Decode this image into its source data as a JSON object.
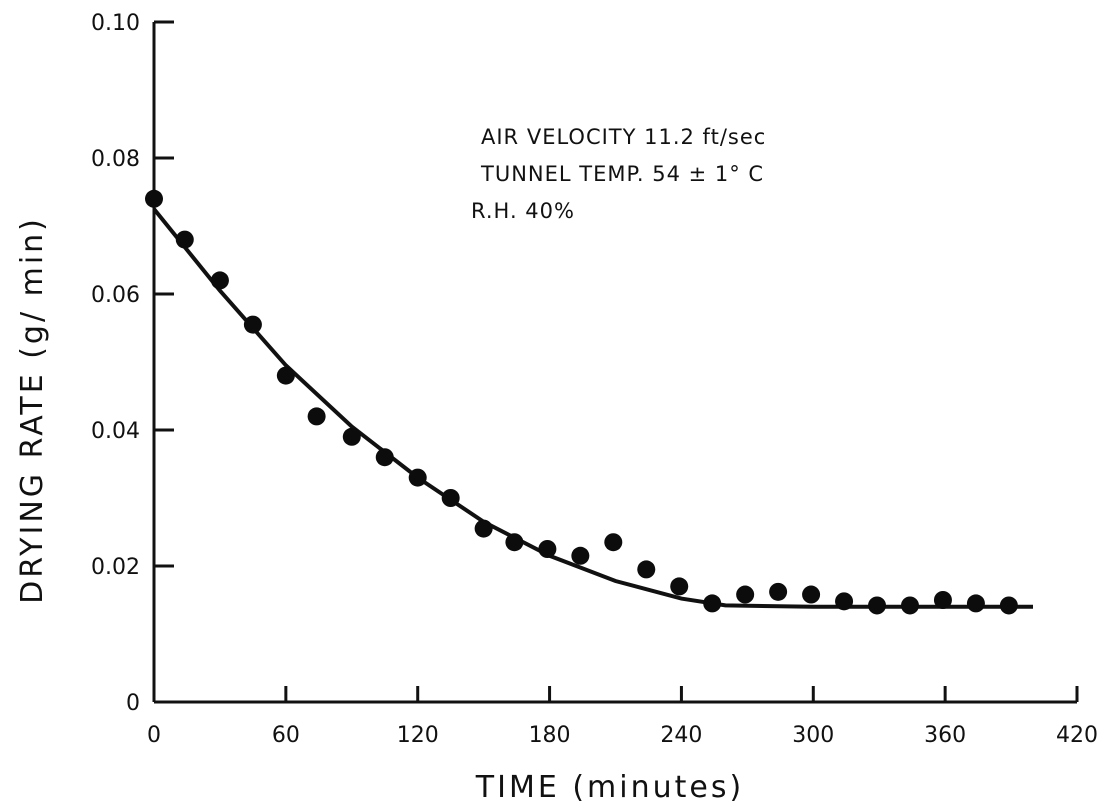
{
  "chart_data": {
    "type": "scatter",
    "xlabel": "TIME (minutes)",
    "ylabel": "DRYING RATE (g/ min)",
    "xlim": [
      0,
      420
    ],
    "ylim": [
      0,
      0.1
    ],
    "x_ticks": [
      "0",
      "60",
      "120",
      "180",
      "240",
      "300",
      "360",
      "420"
    ],
    "x_tick_values": [
      0,
      60,
      120,
      180,
      240,
      300,
      360,
      420
    ],
    "y_ticks": [
      "0",
      "0.02",
      "0.04",
      "0.06",
      "0.08",
      "0.10"
    ],
    "y_tick_values": [
      0,
      0.02,
      0.04,
      0.06,
      0.08,
      0.1
    ],
    "annotations": [
      "AIR VELOCITY 11.2 ft/sec",
      "TUNNEL TEMP. 54 ± 1° C",
      "R.H. 40%"
    ],
    "grid": false,
    "series": [
      {
        "type": "scatter",
        "x": [
          0,
          14,
          30,
          45,
          60,
          74,
          90,
          105,
          120,
          135,
          150,
          164,
          179,
          194,
          209,
          224,
          239,
          254,
          269,
          284,
          299,
          314,
          329,
          344,
          359,
          374,
          389
        ],
        "y": [
          0.074,
          0.068,
          0.062,
          0.0555,
          0.048,
          0.042,
          0.039,
          0.036,
          0.033,
          0.03,
          0.0255,
          0.0235,
          0.0225,
          0.0215,
          0.0235,
          0.0195,
          0.017,
          0.0145,
          0.0158,
          0.0162,
          0.0158,
          0.0148,
          0.0142,
          0.0142,
          0.015,
          0.0145,
          0.0142
        ]
      },
      {
        "type": "line",
        "x": [
          0,
          30,
          60,
          90,
          120,
          150,
          180,
          210,
          240,
          260,
          300,
          360,
          400
        ],
        "y": [
          0.0725,
          0.0605,
          0.0495,
          0.0405,
          0.033,
          0.0265,
          0.0215,
          0.0178,
          0.0152,
          0.0142,
          0.014,
          0.014,
          0.014
        ]
      }
    ]
  }
}
